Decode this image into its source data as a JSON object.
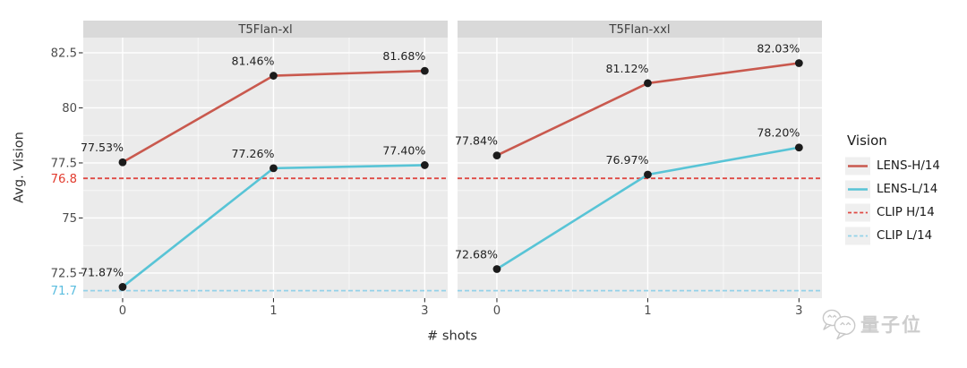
{
  "chart_data": {
    "type": "line",
    "xlabel": "# shots",
    "ylabel": "Avg. Vision",
    "x_categories": [
      "0",
      "1",
      "3"
    ],
    "ylim": [
      71.36,
      83.19
    ],
    "grid": "major+minor white on gray panel",
    "y_axis": {
      "major_ticks": [
        {
          "label": "82.5",
          "value": 82.5
        },
        {
          "label": "80",
          "value": 80
        },
        {
          "label": "77.5",
          "value": 77.5
        },
        {
          "label": "75",
          "value": 75
        },
        {
          "label": "72.5",
          "value": 72.5
        }
      ],
      "minor_values": [
        81.25,
        78.75,
        76.25,
        73.75
      ],
      "highlight_ticks": [
        {
          "label": "76.8",
          "value": 76.8,
          "color": "#e23b2e"
        },
        {
          "label": "71.7",
          "value": 71.7,
          "color": "#5abddf"
        }
      ]
    },
    "facets": [
      {
        "title": "T5Flan-xl",
        "series": [
          {
            "name": "LENS-H/14",
            "color": "#c9594e",
            "values": [
              77.53,
              81.46,
              81.68
            ],
            "labels": [
              "77.53%",
              "81.46%",
              "81.68%"
            ]
          },
          {
            "name": "LENS-L/14",
            "color": "#58c4d6",
            "values": [
              71.87,
              77.26,
              77.4
            ],
            "labels": [
              "71.87%",
              "77.26%",
              "77.40%"
            ]
          }
        ]
      },
      {
        "title": "T5Flan-xxl",
        "series": [
          {
            "name": "LENS-H/14",
            "color": "#c9594e",
            "values": [
              77.84,
              81.12,
              82.03
            ],
            "labels": [
              "77.84%",
              "81.12%",
              "82.03%"
            ]
          },
          {
            "name": "LENS-L/14",
            "color": "#58c4d6",
            "values": [
              72.68,
              76.97,
              78.2
            ],
            "labels": [
              "72.68%",
              "76.97%",
              "78.20%"
            ]
          }
        ]
      }
    ],
    "hlines": [
      {
        "name": "CLIP H/14",
        "value": 76.8,
        "color": "#df4a44",
        "style": "dashed"
      },
      {
        "name": "CLIP L/14",
        "value": 71.7,
        "color": "#93d2e9",
        "style": "dashed"
      }
    ],
    "legend": {
      "title": "Vision",
      "position": "right",
      "items": [
        {
          "label": "LENS-H/14",
          "style": "solid",
          "color": "#c9594e"
        },
        {
          "label": "LENS-L/14",
          "style": "solid",
          "color": "#58c4d6"
        },
        {
          "label": "CLIP H/14",
          "style": "dashed",
          "color": "#df4a44"
        },
        {
          "label": "CLIP L/14",
          "style": "dashed",
          "color": "#93d2e9"
        }
      ]
    }
  },
  "watermark": {
    "text": "量子位",
    "icon": "wechat-bubbles-icon"
  }
}
